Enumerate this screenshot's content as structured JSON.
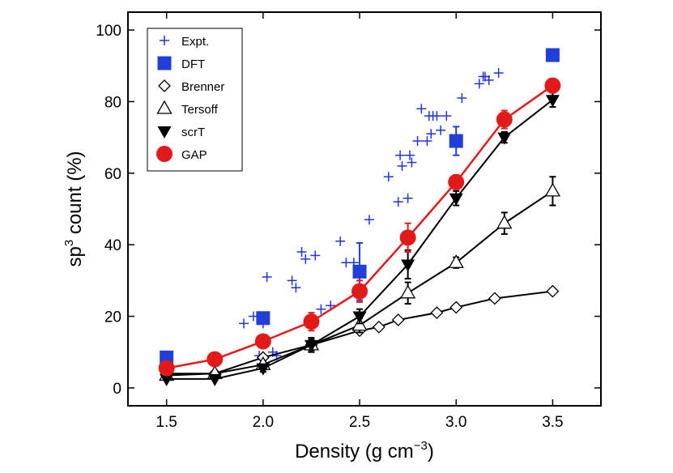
{
  "chart_data": {
    "type": "scatter",
    "xlabel": {
      "main": "Density (g cm",
      "sup": "−3",
      "close": ")"
    },
    "ylabel": {
      "main": "sp",
      "sup": "3",
      "rest": " count (%)"
    },
    "xlim": [
      1.3,
      3.75
    ],
    "ylim": [
      -5,
      105
    ],
    "xticks": [
      1.5,
      2.0,
      2.5,
      3.0,
      3.5
    ],
    "xtick_labels": [
      "1.5",
      "2.0",
      "2.5",
      "3.0",
      "3.5"
    ],
    "yticks": [
      0,
      20,
      40,
      60,
      80,
      100
    ],
    "ytick_labels": [
      "0",
      "20",
      "40",
      "60",
      "80",
      "100"
    ],
    "grid": false,
    "legend_position": "top-left",
    "series": [
      {
        "name": "Expt.",
        "marker": "plus",
        "color": "#2233dd",
        "line": false,
        "x": [
          1.9,
          1.95,
          1.98,
          2.0,
          2.02,
          2.05,
          2.07,
          2.15,
          2.17,
          2.2,
          2.22,
          2.27,
          2.3,
          2.35,
          2.4,
          2.43,
          2.47,
          2.55,
          2.65,
          2.7,
          2.71,
          2.72,
          2.75,
          2.76,
          2.77,
          2.8,
          2.82,
          2.85,
          2.86,
          2.87,
          2.88,
          2.9,
          2.92,
          2.95,
          3.03,
          3.12,
          3.14,
          3.15,
          3.17,
          3.22
        ],
        "y": [
          18,
          20,
          9,
          18,
          31,
          10,
          9,
          30,
          28,
          38,
          36,
          37,
          22,
          23,
          41,
          35,
          35,
          47,
          59,
          52,
          65,
          62,
          53,
          65,
          63,
          69,
          78,
          69,
          76,
          71,
          76,
          76,
          72,
          76,
          81,
          85,
          87,
          87,
          86,
          88
        ]
      },
      {
        "name": "DFT",
        "marker": "square",
        "color": "#1f3fd8",
        "line": false,
        "x": [
          1.5,
          2.0,
          2.5,
          3.0,
          3.5
        ],
        "y": [
          8.5,
          19.5,
          32.5,
          69,
          93
        ],
        "yerr": [
          0,
          1,
          8,
          4,
          0
        ]
      },
      {
        "name": "Brenner",
        "marker": "diamond-open",
        "color": "#000000",
        "line": true,
        "x": [
          1.5,
          1.75,
          2.0,
          2.25,
          2.5,
          2.6,
          2.7,
          2.9,
          3.0,
          3.2,
          3.5
        ],
        "y": [
          4,
          4,
          8.5,
          12,
          16,
          17,
          19,
          21,
          22.5,
          25,
          27
        ]
      },
      {
        "name": "Tersoff",
        "marker": "triangle-up-open",
        "color": "#000000",
        "line": true,
        "x": [
          1.5,
          1.75,
          2.0,
          2.25,
          2.5,
          2.75,
          3.0,
          3.25,
          3.5
        ],
        "y": [
          3.5,
          4,
          6.5,
          12,
          17.5,
          26.5,
          35,
          46,
          55
        ],
        "yerr": [
          0,
          0,
          1,
          2,
          2,
          3,
          1.5,
          3,
          4
        ]
      },
      {
        "name": "scrT",
        "marker": "triangle-down-filled",
        "color": "#000000",
        "line": true,
        "x": [
          1.5,
          1.75,
          2.0,
          2.25,
          2.5,
          2.75,
          3.0,
          3.25,
          3.5
        ],
        "y": [
          2.5,
          2.5,
          5.5,
          12,
          20,
          34.5,
          53,
          70,
          80.5
        ],
        "yerr": [
          0,
          0,
          1,
          1.5,
          2,
          4,
          2,
          1.5,
          2
        ]
      },
      {
        "name": "GAP",
        "marker": "circle-filled",
        "color": "#e41a1a",
        "line": true,
        "x": [
          1.5,
          1.75,
          2.0,
          2.25,
          2.5,
          2.75,
          3.0,
          3.25,
          3.5
        ],
        "y": [
          5.5,
          8,
          13,
          18.5,
          27,
          42,
          57.5,
          75,
          84.5
        ],
        "yerr": [
          0,
          0,
          1,
          2.5,
          3,
          4,
          2,
          2.5,
          1.5
        ]
      }
    ]
  }
}
